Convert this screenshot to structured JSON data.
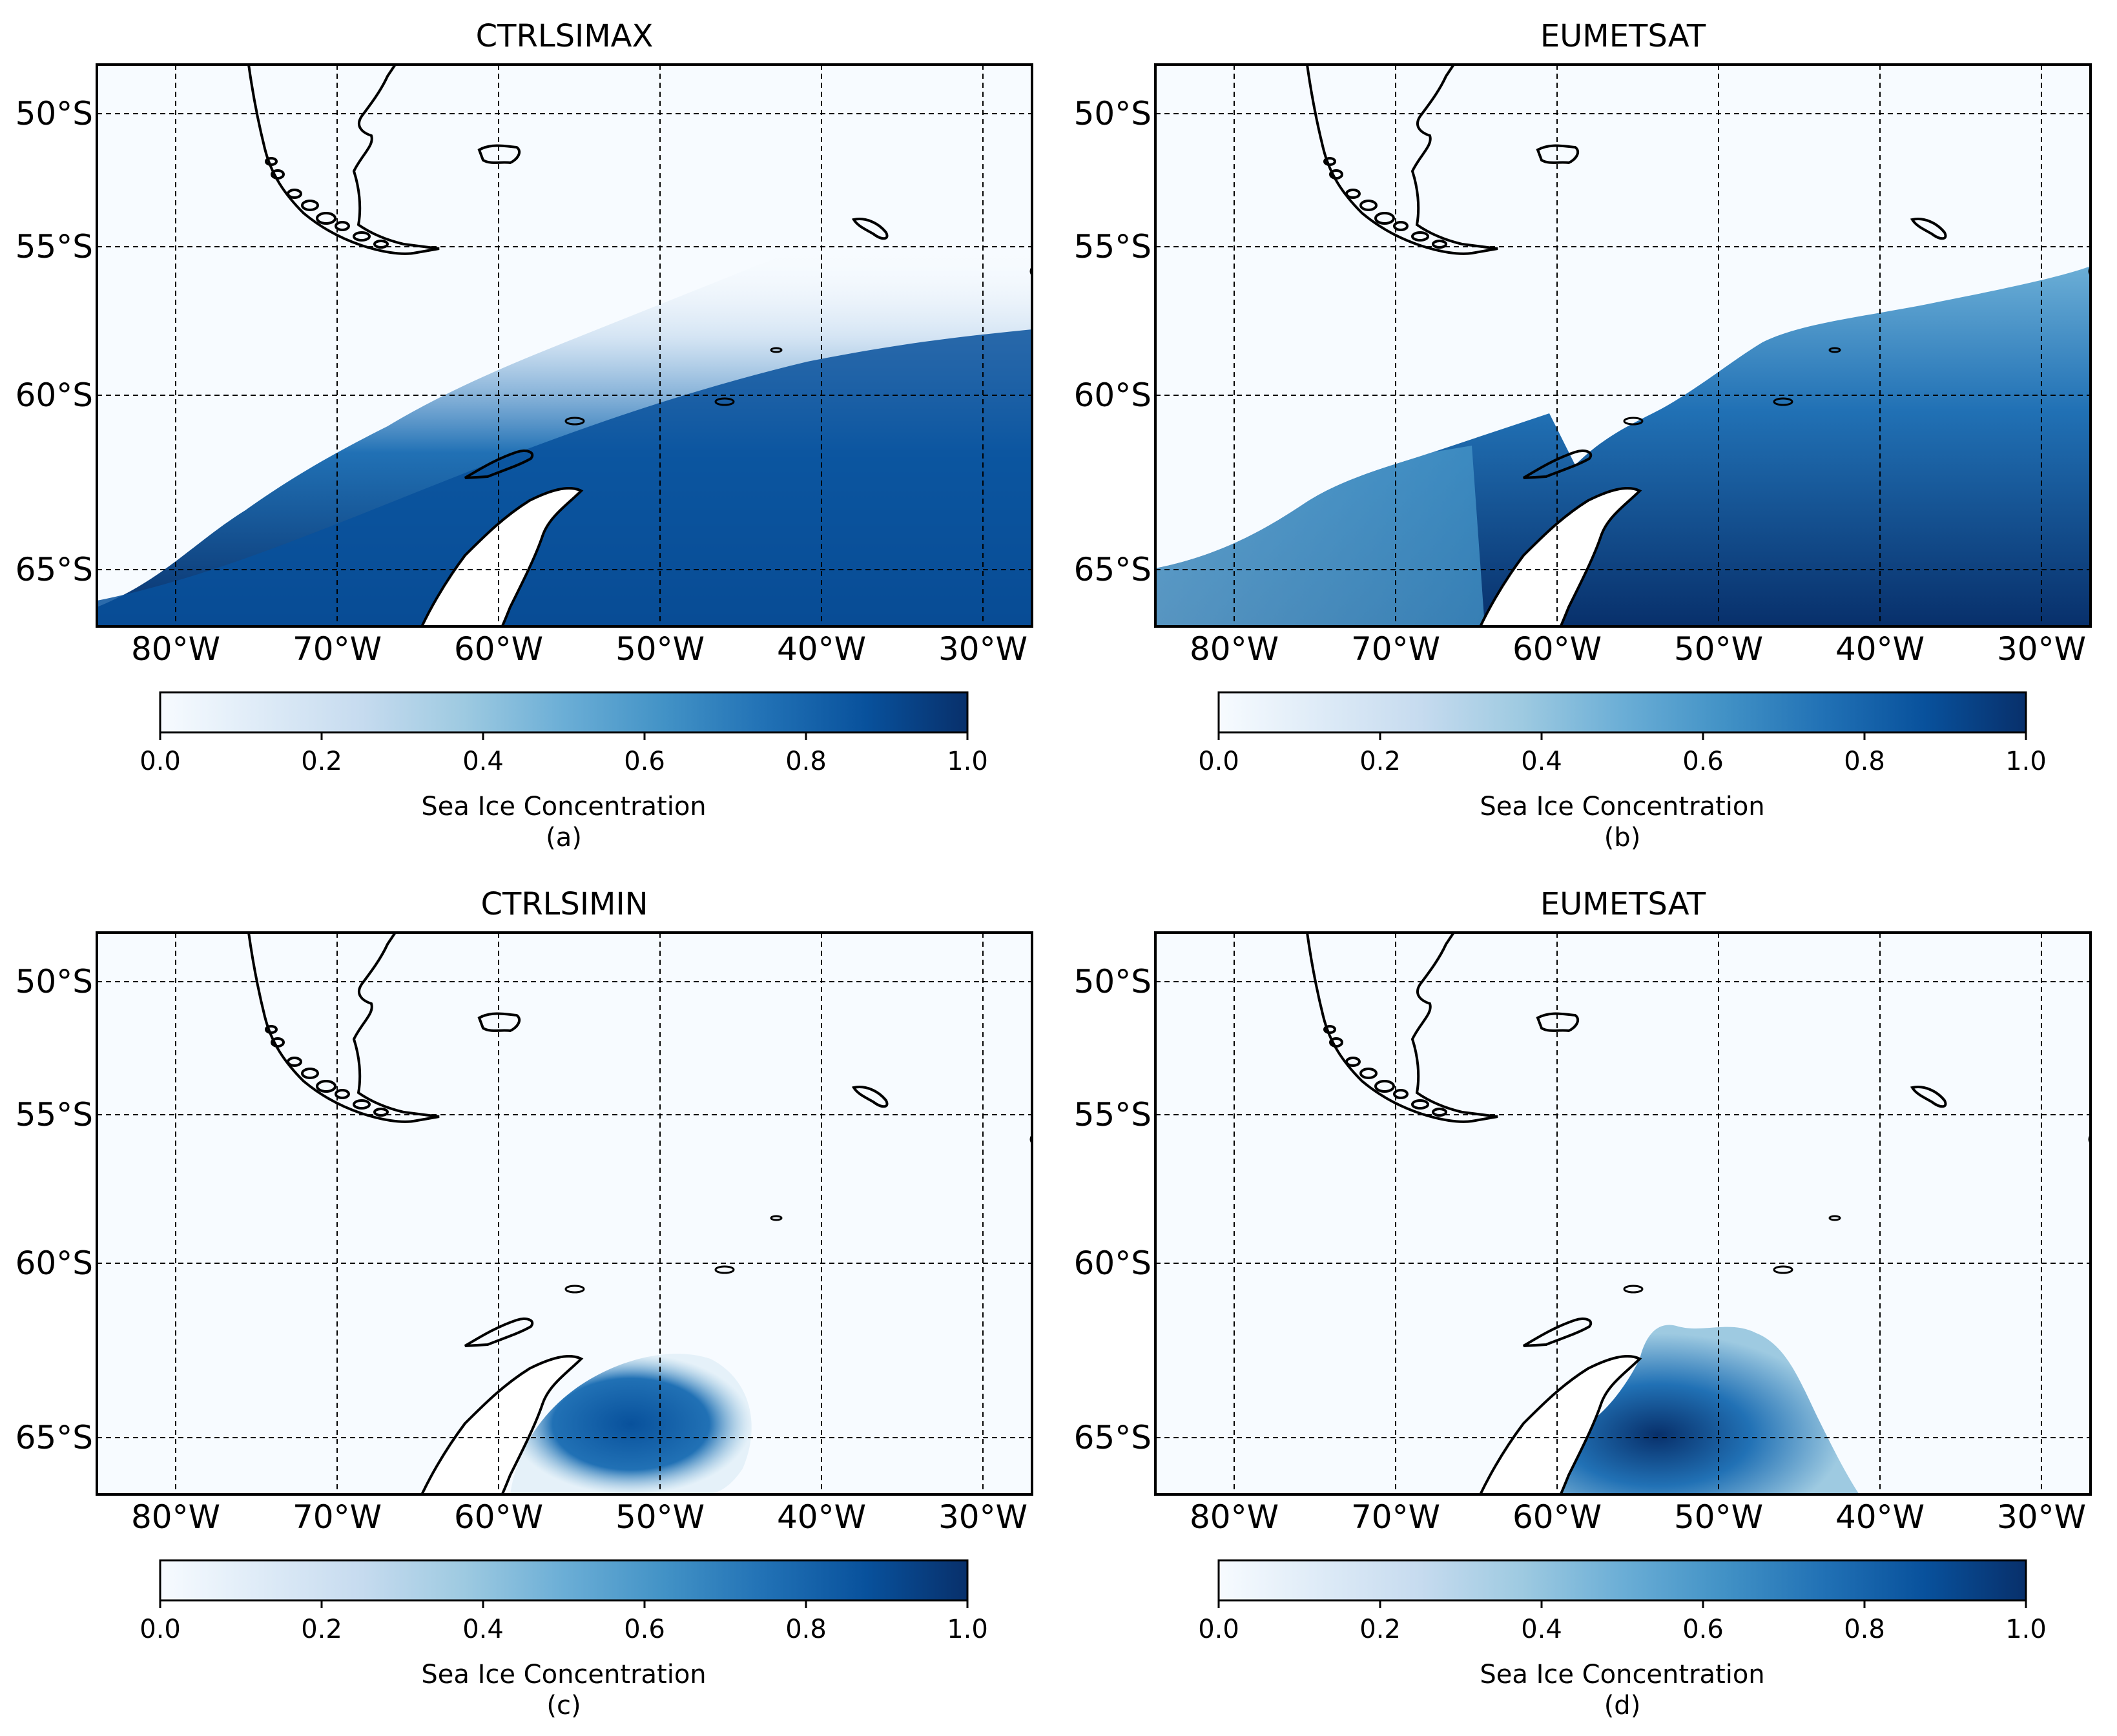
{
  "figure": {
    "colormap": {
      "name": "Blues",
      "stops": [
        "#f7fbff",
        "#deebf7",
        "#c6dbef",
        "#9ecae1",
        "#6baed6",
        "#4292c6",
        "#2171b5",
        "#08519c",
        "#08306b"
      ]
    },
    "lat_labels": [
      "50°S",
      "55°S",
      "60°S",
      "65°S"
    ],
    "lon_labels": [
      "80°W",
      "70°W",
      "60°W",
      "50°W",
      "40°W",
      "30°W"
    ],
    "colorbar": {
      "ticks": [
        "0.0",
        "0.2",
        "0.4",
        "0.6",
        "0.8",
        "1.0"
      ],
      "label": "Sea Ice Concentration",
      "range": [
        0.0,
        1.0
      ]
    }
  },
  "panels": [
    {
      "title": "CTRLSIMAX",
      "panel_label": "(a)"
    },
    {
      "title": "EUMETSAT",
      "panel_label": "(b)"
    },
    {
      "title": "CTRLSIMIN",
      "panel_label": "(c)"
    },
    {
      "title": "EUMETSAT",
      "panel_label": "(d)"
    }
  ]
}
